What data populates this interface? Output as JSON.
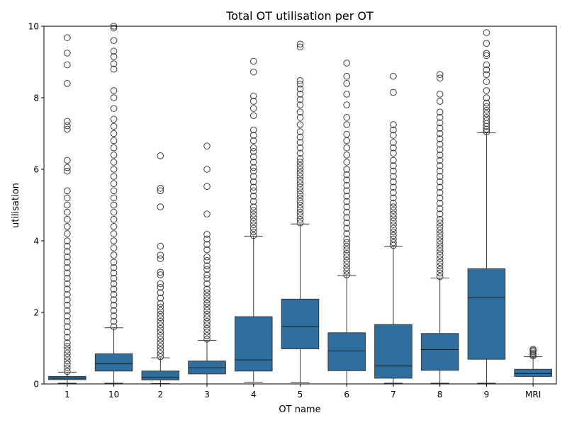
{
  "chart_data": {
    "type": "box",
    "title": "Total OT utilisation per OT",
    "xlabel": "OT name",
    "ylabel": "utilisation",
    "ylim": [
      0,
      10
    ],
    "yticks": [
      0,
      2,
      4,
      6,
      8,
      10
    ],
    "grid": false,
    "legend": "none",
    "colors": {
      "box": "#2f6f9f",
      "median": "#1f1f1f",
      "outlier_edge": "#3d3d3d"
    },
    "categories": [
      "1",
      "10",
      "2",
      "3",
      "4",
      "5",
      "6",
      "7",
      "8",
      "9",
      "MRI"
    ],
    "boxes": [
      {
        "category": "1",
        "whisker_low": 0.02,
        "q1": 0.12,
        "median": 0.16,
        "q3": 0.21,
        "whisker_high": 0.33,
        "outliers": [
          0.35,
          0.45,
          0.55,
          0.65,
          0.75,
          0.85,
          0.95,
          1.05,
          1.15,
          1.3,
          1.45,
          1.6,
          1.75,
          1.9,
          2.05,
          2.2,
          2.35,
          2.5,
          2.65,
          2.8,
          2.95,
          3.1,
          3.25,
          3.4,
          3.55,
          3.7,
          3.85,
          4.0,
          4.2,
          4.4,
          4.6,
          4.8,
          5.0,
          5.2,
          5.4,
          5.95,
          6.05,
          6.25,
          7.12,
          7.22,
          7.34,
          8.4,
          8.92,
          9.25,
          9.68
        ]
      },
      {
        "category": "10",
        "whisker_low": 0.02,
        "q1": 0.36,
        "median": 0.57,
        "q3": 0.84,
        "whisker_high": 1.57,
        "outliers": [
          1.6,
          1.75,
          1.9,
          2.05,
          2.2,
          2.35,
          2.5,
          2.65,
          2.8,
          2.95,
          3.1,
          3.25,
          3.4,
          3.6,
          3.8,
          4.0,
          4.2,
          4.4,
          4.6,
          4.8,
          5.0,
          5.2,
          5.4,
          5.6,
          5.8,
          6.0,
          6.2,
          6.4,
          6.6,
          6.8,
          7.0,
          7.2,
          7.4,
          7.7,
          8.0,
          8.2,
          8.8,
          8.95,
          9.15,
          9.3,
          9.6,
          9.95,
          10.0
        ]
      },
      {
        "category": "2",
        "whisker_low": 0.01,
        "q1": 0.11,
        "median": 0.18,
        "q3": 0.36,
        "whisker_high": 0.73,
        "outliers": [
          0.76,
          0.85,
          0.95,
          1.05,
          1.15,
          1.25,
          1.35,
          1.45,
          1.55,
          1.65,
          1.75,
          1.85,
          1.95,
          2.05,
          2.15,
          2.25,
          2.4,
          2.55,
          2.7,
          2.8,
          3.05,
          3.12,
          3.5,
          3.6,
          3.85,
          4.95,
          5.4,
          5.47,
          6.38
        ]
      },
      {
        "category": "3",
        "whisker_low": 0.0,
        "q1": 0.28,
        "median": 0.45,
        "q3": 0.64,
        "whisker_high": 1.22,
        "outliers": [
          1.25,
          1.35,
          1.45,
          1.55,
          1.65,
          1.75,
          1.85,
          1.95,
          2.05,
          2.15,
          2.25,
          2.35,
          2.45,
          2.55,
          2.65,
          2.8,
          2.95,
          3.05,
          3.2,
          3.3,
          3.45,
          3.55,
          3.75,
          3.9,
          4.05,
          4.18,
          4.75,
          5.52,
          6.0,
          6.65
        ]
      },
      {
        "category": "4",
        "whisker_low": 0.05,
        "q1": 0.36,
        "median": 0.67,
        "q3": 1.88,
        "whisker_high": 4.13,
        "outliers": [
          4.15,
          4.25,
          4.35,
          4.45,
          4.55,
          4.65,
          4.75,
          4.85,
          4.95,
          5.1,
          5.25,
          5.4,
          5.5,
          5.65,
          5.8,
          5.95,
          6.05,
          6.2,
          6.35,
          6.5,
          6.6,
          6.8,
          6.95,
          7.1,
          7.5,
          7.7,
          7.9,
          8.05,
          8.72,
          9.02
        ]
      },
      {
        "category": "5",
        "whisker_low": 0.03,
        "q1": 0.98,
        "median": 1.61,
        "q3": 2.37,
        "whisker_high": 4.47,
        "outliers": [
          4.5,
          4.6,
          4.7,
          4.8,
          4.9,
          5.0,
          5.1,
          5.2,
          5.3,
          5.4,
          5.5,
          5.6,
          5.7,
          5.8,
          5.9,
          6.0,
          6.1,
          6.2,
          6.3,
          6.45,
          6.6,
          6.75,
          6.9,
          7.05,
          7.25,
          7.45,
          7.6,
          7.8,
          7.95,
          8.1,
          8.25,
          8.38,
          8.48,
          9.42,
          9.5
        ]
      },
      {
        "category": "6",
        "whisker_low": 0.0,
        "q1": 0.37,
        "median": 0.92,
        "q3": 1.43,
        "whisker_high": 3.03,
        "outliers": [
          3.05,
          3.15,
          3.25,
          3.35,
          3.45,
          3.55,
          3.65,
          3.75,
          3.85,
          3.95,
          4.05,
          4.2,
          4.35,
          4.5,
          4.65,
          4.8,
          4.95,
          5.1,
          5.25,
          5.4,
          5.55,
          5.7,
          5.85,
          6.0,
          6.2,
          6.4,
          6.6,
          6.8,
          6.98,
          7.25,
          7.45,
          7.8,
          8.1,
          8.4,
          8.6,
          8.97
        ]
      },
      {
        "category": "7",
        "whisker_low": 0.02,
        "q1": 0.16,
        "median": 0.5,
        "q3": 1.66,
        "whisker_high": 3.85,
        "outliers": [
          3.87,
          3.95,
          4.05,
          4.15,
          4.25,
          4.35,
          4.45,
          4.55,
          4.65,
          4.75,
          4.85,
          4.95,
          5.05,
          5.2,
          5.35,
          5.5,
          5.65,
          5.8,
          5.95,
          6.1,
          6.25,
          6.45,
          6.6,
          6.75,
          6.95,
          7.1,
          7.25,
          8.15,
          8.6
        ]
      },
      {
        "category": "8",
        "whisker_low": 0.02,
        "q1": 0.38,
        "median": 0.96,
        "q3": 1.41,
        "whisker_high": 2.96,
        "outliers": [
          3.0,
          3.1,
          3.2,
          3.3,
          3.4,
          3.5,
          3.6,
          3.7,
          3.8,
          3.9,
          4.0,
          4.1,
          4.2,
          4.3,
          4.4,
          4.5,
          4.6,
          4.75,
          4.9,
          5.05,
          5.2,
          5.35,
          5.5,
          5.65,
          5.8,
          5.95,
          6.1,
          6.25,
          6.4,
          6.55,
          6.7,
          6.85,
          7.0,
          7.15,
          7.3,
          7.45,
          7.6,
          7.9,
          8.1,
          8.55,
          8.65
        ]
      },
      {
        "category": "9",
        "whisker_low": 0.02,
        "q1": 0.69,
        "median": 2.41,
        "q3": 3.22,
        "whisker_high": 7.02,
        "outliers": [
          7.05,
          7.12,
          7.2,
          7.28,
          7.36,
          7.45,
          7.55,
          7.65,
          7.75,
          7.85,
          8.0,
          8.2,
          8.45,
          8.65,
          8.78,
          8.92,
          9.18,
          9.24,
          9.52,
          9.82
        ]
      },
      {
        "category": "MRI",
        "whisker_low": 0.0,
        "q1": 0.21,
        "median": 0.29,
        "q3": 0.41,
        "whisker_high": 0.76,
        "outliers": [
          0.78,
          0.82,
          0.86,
          0.9,
          0.94,
          0.97
        ]
      }
    ]
  }
}
